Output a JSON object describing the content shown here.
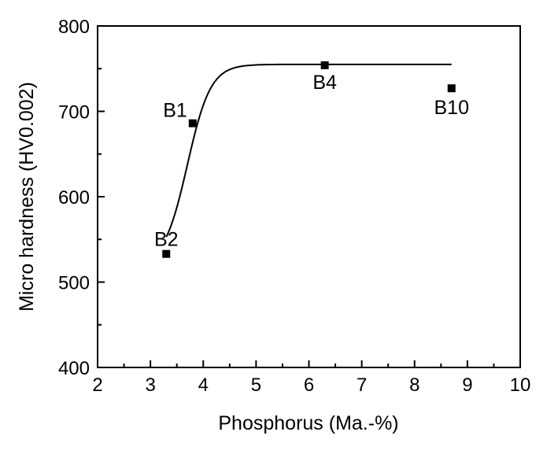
{
  "chart_data": {
    "type": "scatter",
    "title": "",
    "xlabel": "Phosphorus (Ma.-%)",
    "ylabel": "Micro hardness (HV0.002)",
    "xlim": [
      2,
      10
    ],
    "ylim": [
      400,
      800
    ],
    "xticks": [
      2,
      3,
      4,
      5,
      6,
      7,
      8,
      9,
      10
    ],
    "yticks": [
      400,
      500,
      600,
      700,
      800
    ],
    "grid": false,
    "points": [
      {
        "label": "B2",
        "x": 3.3,
        "y": 533
      },
      {
        "label": "B1",
        "x": 3.8,
        "y": 686
      },
      {
        "label": "B4",
        "x": 6.3,
        "y": 754
      },
      {
        "label": "B10",
        "x": 8.7,
        "y": 727
      }
    ],
    "fit_curve": {
      "type": "sigmoid",
      "x_range": [
        3.3,
        8.7
      ],
      "lower": 520,
      "upper": 755,
      "center": 3.7,
      "width": 0.22
    }
  }
}
